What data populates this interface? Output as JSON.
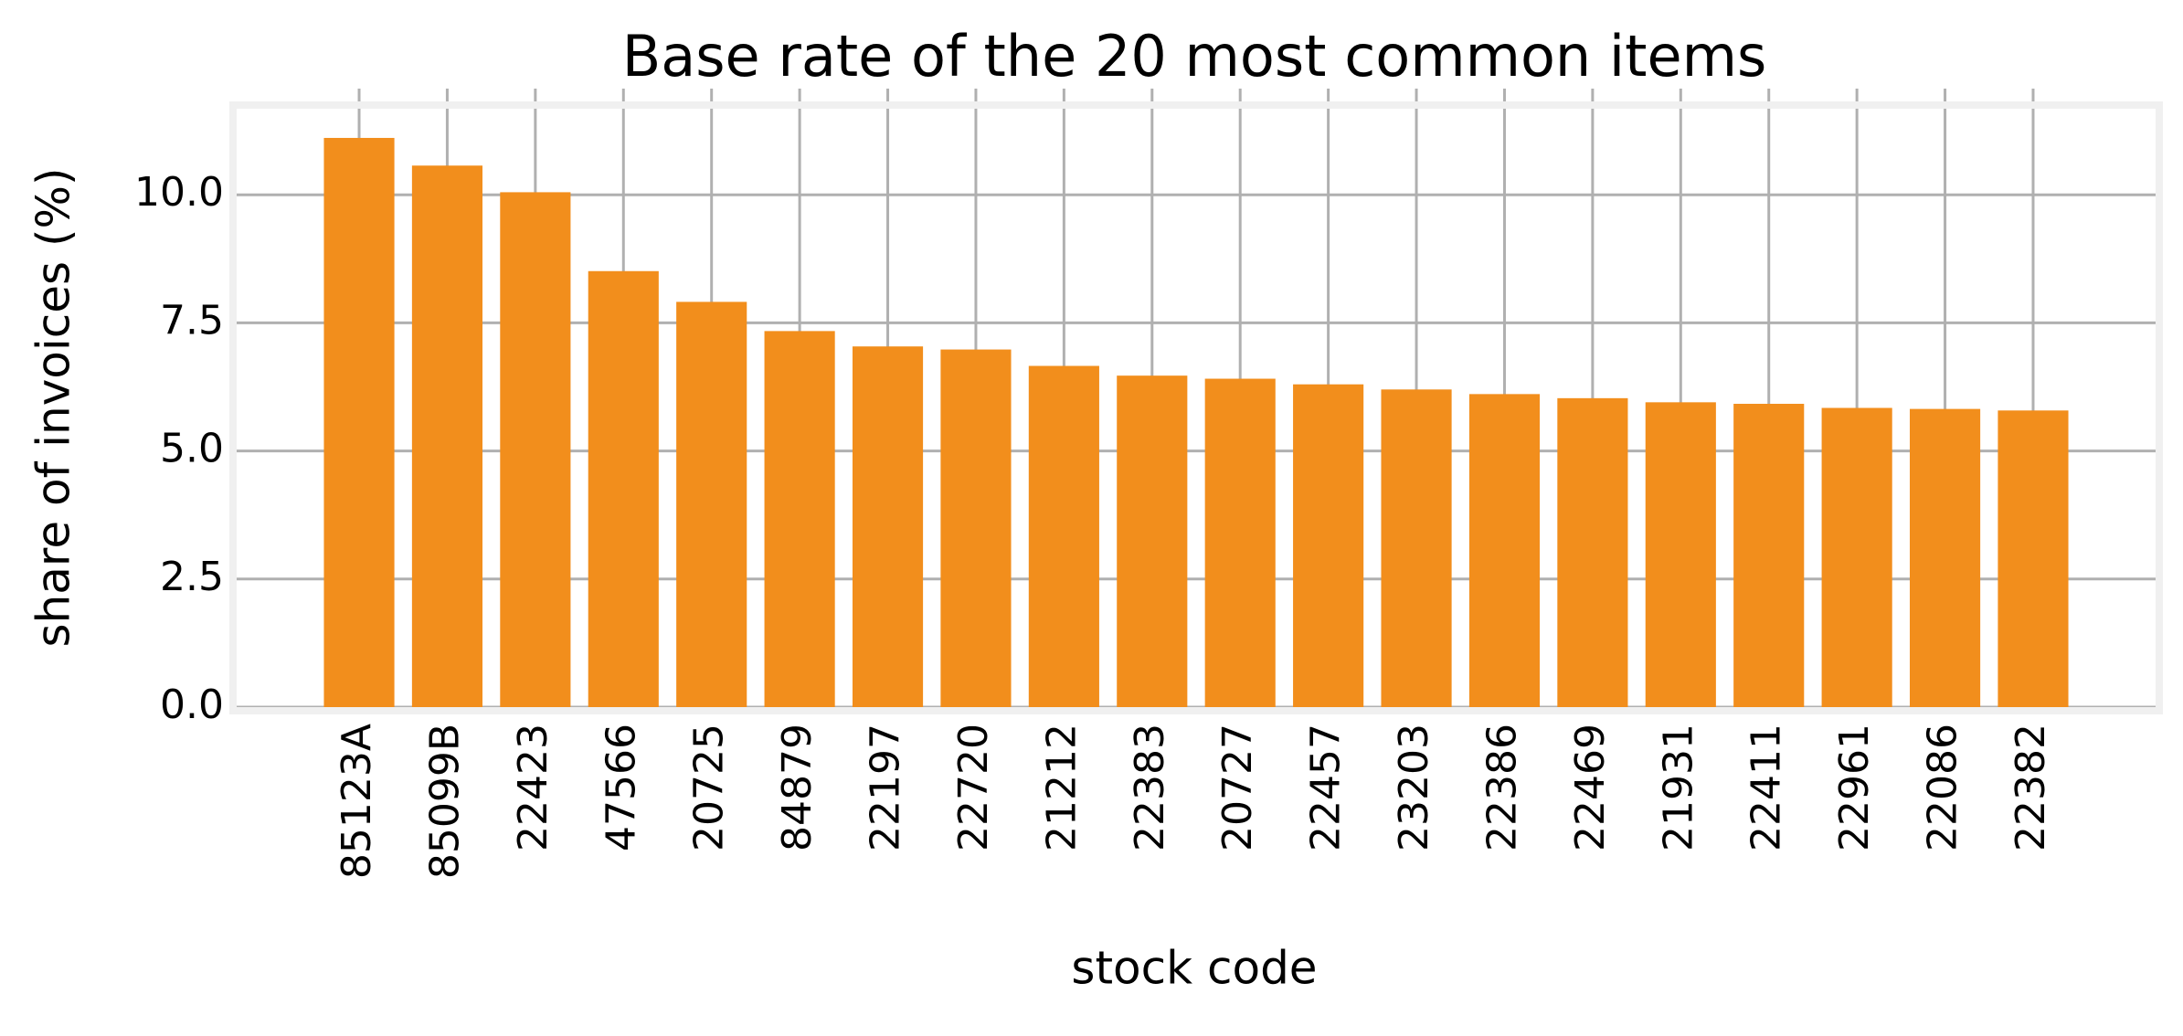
{
  "chart_data": {
    "type": "bar",
    "title": "Base rate of the 20 most common items",
    "xlabel": "stock code",
    "ylabel": "share of invoices (%)",
    "categories": [
      "85123A",
      "85099B",
      "22423",
      "47566",
      "20725",
      "84879",
      "22197",
      "22720",
      "21212",
      "22383",
      "20727",
      "22457",
      "23203",
      "22386",
      "22469",
      "21931",
      "22411",
      "22961",
      "22086",
      "22382"
    ],
    "values": [
      11.11,
      10.57,
      10.05,
      8.51,
      7.91,
      7.34,
      7.04,
      6.98,
      6.66,
      6.47,
      6.41,
      6.3,
      6.2,
      6.11,
      6.03,
      5.95,
      5.92,
      5.84,
      5.82,
      5.79
    ],
    "color": "#f28e1c",
    "ylim": [
      0,
      11.68
    ],
    "yticks": [
      {
        "value": 0,
        "label": "0.0"
      },
      2.5,
      {
        "value": 5,
        "label": "5.0"
      },
      7.5,
      {
        "value": 10,
        "label": "10.0"
      }
    ],
    "grid": true
  }
}
